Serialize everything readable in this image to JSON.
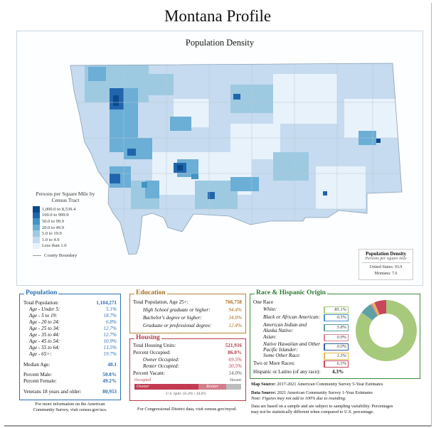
{
  "title": "Montana Profile",
  "map": {
    "subtitle": "Population Density",
    "legend_title": "Persons per Square Mile by Census Tract",
    "legend": [
      {
        "label": "1,000.0 to 8,539.4",
        "color": "#0b4a8b"
      },
      {
        "label": "100.0 to 999.9",
        "color": "#2166ac"
      },
      {
        "label": "50.0 to 99.9",
        "color": "#4393c3"
      },
      {
        "label": "20.0 to 49.9",
        "color": "#6baed6"
      },
      {
        "label": "5.0 to 19.9",
        "color": "#9ecae1"
      },
      {
        "label": "1.0 to 4.9",
        "color": "#c6dbef"
      },
      {
        "label": "Less than 1.0",
        "color": "#e8f2fb"
      }
    ],
    "county_boundary_label": "County Boundary",
    "density_box": {
      "title": "Population Density",
      "subtitle": "Persons per square mile",
      "us_label": "United States:",
      "us_value": "93.9",
      "mt_label": "Montana:",
      "mt_value": "7.6"
    }
  },
  "population": {
    "header": "Population",
    "rows": [
      {
        "label": "Total Population:",
        "value": "1,104,271",
        "style": "bold-blue"
      },
      {
        "label": "Age - Under 5:",
        "value": "5.1%",
        "style": "age"
      },
      {
        "label": "Age - 5 to 19:",
        "value": "18.7%",
        "style": "age"
      },
      {
        "label": "Age - 20 to 24:",
        "value": "6.8%",
        "style": "age"
      },
      {
        "label": "Age - 25 to 34:",
        "value": "12.7%",
        "style": "age"
      },
      {
        "label": "Age - 35 to 44:",
        "value": "12.7%",
        "style": "age"
      },
      {
        "label": "Age - 45 to 54:",
        "value": "10.9%",
        "style": "age"
      },
      {
        "label": "Age - 55 to 64:",
        "value": "13.5%",
        "style": "age"
      },
      {
        "label": "Age - 65+:",
        "value": "19.7%",
        "style": "age"
      },
      {
        "label": "Median Age:",
        "value": "40.1",
        "style": "plain"
      },
      {
        "label": "Percent Male:",
        "value": "50.8%",
        "style": "plain"
      },
      {
        "label": "Percent Female:",
        "value": "49.2%",
        "style": "plain"
      },
      {
        "label": "Veterans 18 years and older:",
        "value": "80,953",
        "style": "plain"
      }
    ],
    "footnote_1": "For more information on the American",
    "footnote_2": "Community Survey, visit census.gov/acs."
  },
  "education": {
    "header": "Education",
    "rows": [
      {
        "label": "Total Population, Age 25+:",
        "value": "766,758"
      },
      {
        "label": "High School graduate or higher:",
        "value": "94.4%"
      },
      {
        "label": "Bachelor's degree or higher:",
        "value": "34.8%"
      },
      {
        "label": "Graduate or professional degree:",
        "value": "12.4%"
      }
    ]
  },
  "housing": {
    "header": "Housing",
    "rows": [
      {
        "label": "Total Housing Units:",
        "value": "521,916"
      },
      {
        "label": "Percent Occupied:",
        "value": "86.0%"
      },
      {
        "label": "Owner Occupied:",
        "value": "69.5%"
      },
      {
        "label": "Renter Occupied:",
        "value": "30.5%"
      },
      {
        "label": "Percent Vacant:",
        "value": "14.0%"
      }
    ],
    "bar": {
      "occupied_label": "Occupied",
      "vacant_label": "Vacant",
      "owner_label": "Owner",
      "renter_label": "Renter",
      "owner_pct": 0.598,
      "renter_pct": 0.262,
      "vacant_pct": 0.14,
      "split_note": "U.S. Split: 65.4% | 34.6%"
    },
    "footnote": "For Congressional District data, visit census.gov/myod."
  },
  "race": {
    "header": "Race & Hispanic Origin",
    "one_race": "One Race",
    "rows": [
      {
        "label": "White:",
        "value": "85.1%",
        "color": "#a7c97b"
      },
      {
        "label": "Black or African American:",
        "value": "0.5%",
        "color": "#4a90c9"
      },
      {
        "label": "American Indian and Alaska Native:",
        "value": "5.8%",
        "color": "#5fa0a0"
      },
      {
        "label": "Asian:",
        "value": "0.9%",
        "color": "#d9879a"
      },
      {
        "label": "Native Hawaiian and Other Pacific Islander:",
        "value": "0.0%",
        "color": "#2f5fa8"
      },
      {
        "label": "Some Other Race:",
        "value": "1.3%",
        "color": "#e8b84a"
      },
      {
        "label": "Two or More Races:",
        "value": "6.3%",
        "color": "#c9465c"
      }
    ],
    "hispanic_label": "Hispanic or Latino (of any race):",
    "hispanic_value": "4.3%"
  },
  "sources": {
    "map_label": "Map Source:",
    "map_text": "2017-2021 American Community Survey 5-Year Estimates",
    "data_label": "Data Source:",
    "data_text": "2021 American Community Survey 1-Year Estimates",
    "note": "Note: Figures may not add to 100% due to rounding.",
    "disclaimer_1": "Data are based on a sample and are subject to sampling variability. Percentages",
    "disclaimer_2": "may not be statistically different when compared to U.S. percentage."
  }
}
